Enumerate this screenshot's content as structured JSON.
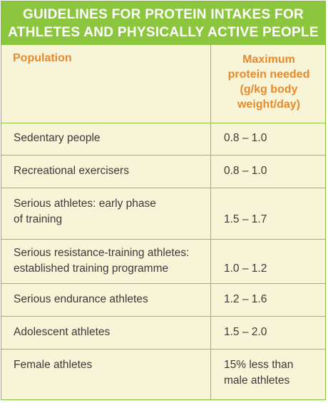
{
  "title": {
    "line1": "GUIDELINES FOR PROTEIN INTAKES FOR",
    "line2": "ATHLETES AND PHYSICALLY ACTIVE PEOPLE"
  },
  "headers": {
    "population": "Population",
    "maximum_line1": "Maximum",
    "maximum_line2": "protein needed",
    "maximum_line3": "(g/kg body",
    "maximum_line4": "weight/day)"
  },
  "rows": [
    {
      "population_line1": "Sedentary people",
      "population_line2": "",
      "value_line1": "0.8 – 1.0",
      "value_line2": ""
    },
    {
      "population_line1": "Recreational exercisers",
      "population_line2": "",
      "value_line1": "0.8 – 1.0",
      "value_line2": ""
    },
    {
      "population_line1": "Serious athletes: early phase",
      "population_line2": "of training",
      "value_line1": "1.5 – 1.7",
      "value_line2": ""
    },
    {
      "population_line1": "Serious resistance-training athletes:",
      "population_line2": "established training programme",
      "value_line1": "1.0 – 1.2",
      "value_line2": ""
    },
    {
      "population_line1": "Serious endurance athletes",
      "population_line2": "",
      "value_line1": "1.2 – 1.6",
      "value_line2": ""
    },
    {
      "population_line1": "Adolescent athletes",
      "population_line2": "",
      "value_line1": "1.5 – 2.0",
      "value_line2": ""
    },
    {
      "population_line1": "Female athletes",
      "population_line2": "",
      "value_line1": "15% less than",
      "value_line2": "male athletes"
    }
  ],
  "colors": {
    "title_bg": "#8cc63e",
    "header_text": "#e8892b",
    "body_bg": "#f7f4d8"
  }
}
